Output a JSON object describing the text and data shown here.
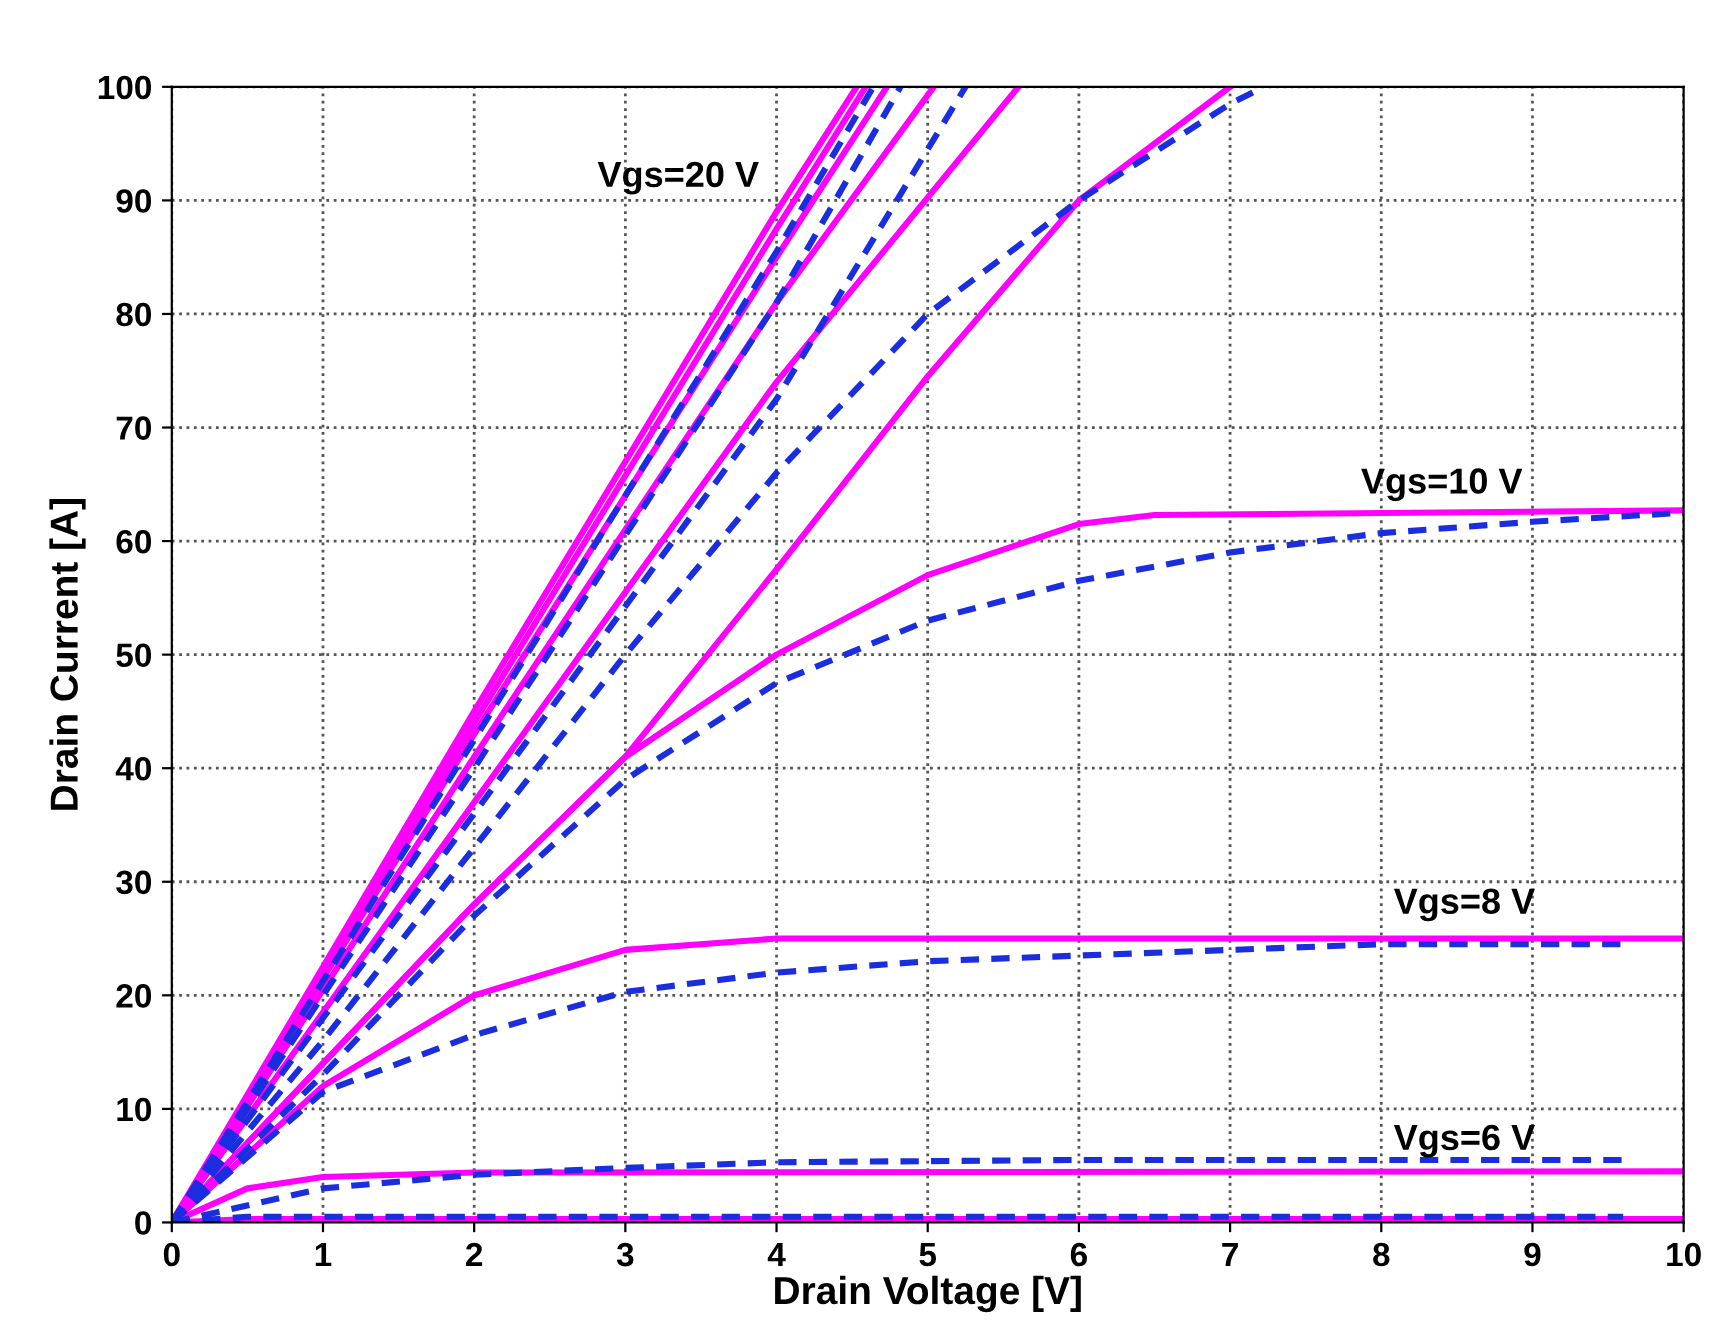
{
  "chart_data": {
    "type": "line",
    "xlabel": "Drain Voltage [V]",
    "ylabel": "Drain Current [A]",
    "xlim": [
      0,
      10
    ],
    "ylim": [
      0,
      100
    ],
    "xticks": [
      0,
      1,
      2,
      3,
      4,
      5,
      6,
      7,
      8,
      9,
      10
    ],
    "yticks": [
      0,
      10,
      20,
      30,
      40,
      50,
      60,
      70,
      80,
      90,
      100
    ],
    "grid": true,
    "marker": "none",
    "annotations": [
      "Vgs=20 V",
      "Vgs=10 V",
      "Vgs=8 V",
      "Vgs=6 V"
    ],
    "series": [
      {
        "color": "#ff00ff",
        "line_style": "solid",
        "x": [
          0,
          0.5,
          10
        ],
        "values": [
          0,
          0.3,
          0.3
        ]
      },
      {
        "color": "#ff00ff",
        "line_style": "solid",
        "x": [
          0,
          0.5,
          1,
          2,
          10
        ],
        "values": [
          0,
          3,
          4,
          4.4,
          4.5
        ]
      },
      {
        "color": "#ff00ff",
        "line_style": "solid",
        "x": [
          0,
          1,
          2,
          3,
          4,
          10
        ],
        "values": [
          0,
          12,
          20,
          24,
          25,
          25
        ]
      },
      {
        "color": "#ff00ff",
        "line_style": "solid",
        "x": [
          0,
          1,
          2,
          3,
          4,
          5,
          6,
          6.5,
          10
        ],
        "values": [
          0,
          14,
          28,
          41,
          50,
          57,
          61.5,
          62.3,
          62.7
        ]
      },
      {
        "color": "#ff00ff",
        "line_style": "solid",
        "x": [
          0,
          1,
          2,
          3,
          4,
          5,
          6,
          7
        ],
        "values": [
          0,
          14,
          28,
          41,
          57.5,
          74.5,
          90,
          100
        ]
      },
      {
        "color": "#ff00ff",
        "line_style": "solid",
        "x": [
          0,
          2,
          4,
          5.6
        ],
        "values": [
          0,
          37,
          74,
          100
        ]
      },
      {
        "color": "#ff00ff",
        "line_style": "solid",
        "x": [
          0,
          2,
          4,
          5.04
        ],
        "values": [
          0,
          41,
          81,
          100
        ]
      },
      {
        "color": "#ff00ff",
        "line_style": "solid",
        "x": [
          0,
          2,
          4,
          4.73
        ],
        "values": [
          0,
          43,
          85,
          100
        ]
      },
      {
        "color": "#ff00ff",
        "line_style": "solid",
        "x": [
          0,
          2,
          4,
          4.59
        ],
        "values": [
          0,
          44,
          87.5,
          100
        ]
      },
      {
        "color": "#ff00ff",
        "line_style": "solid",
        "x": [
          0,
          2,
          4,
          4.53
        ],
        "values": [
          0,
          45,
          89,
          100
        ]
      },
      {
        "color": "#1a2ee0",
        "line_style": "dashed",
        "x": [
          0,
          0.5,
          9.6
        ],
        "values": [
          0,
          0.5,
          0.5
        ]
      },
      {
        "color": "#1a2ee0",
        "line_style": "dashed",
        "x": [
          0,
          1,
          2,
          3,
          4,
          6,
          8,
          9.6
        ],
        "values": [
          0,
          3,
          4.2,
          4.8,
          5.3,
          5.5,
          5.5,
          5.5
        ]
      },
      {
        "color": "#1a2ee0",
        "line_style": "dashed",
        "x": [
          0,
          1,
          2,
          3,
          4,
          5,
          6,
          7,
          8,
          9.6
        ],
        "values": [
          0,
          11.5,
          16.5,
          20.3,
          22,
          23,
          23.5,
          24,
          24.5,
          24.5
        ]
      },
      {
        "color": "#1a2ee0",
        "line_style": "dashed",
        "x": [
          0,
          1,
          2,
          3,
          4,
          5,
          6,
          7,
          8,
          9,
          10
        ],
        "values": [
          0,
          13,
          27,
          39,
          47.5,
          53,
          56.5,
          59,
          60.7,
          61.7,
          62.5
        ]
      },
      {
        "color": "#1a2ee0",
        "line_style": "dashed",
        "x": [
          0,
          1,
          2,
          3,
          4,
          5,
          6,
          7,
          7.15
        ],
        "values": [
          0,
          16,
          33,
          50,
          66,
          80,
          90,
          98.5,
          99.5
        ]
      },
      {
        "color": "#1a2ee0",
        "line_style": "dashed",
        "x": [
          0,
          2,
          4,
          5.25
        ],
        "values": [
          0,
          36,
          72.5,
          100
        ]
      },
      {
        "color": "#1a2ee0",
        "line_style": "dashed",
        "x": [
          0,
          2,
          4,
          4.82
        ],
        "values": [
          0,
          40,
          81,
          100
        ]
      },
      {
        "color": "#1a2ee0",
        "line_style": "dashed",
        "x": [
          0,
          2,
          4,
          4.64
        ],
        "values": [
          0,
          42.5,
          85.5,
          100
        ]
      }
    ]
  }
}
